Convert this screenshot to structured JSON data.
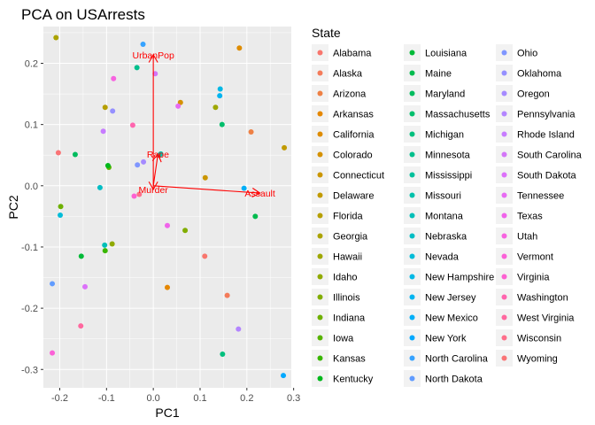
{
  "chart_data": {
    "type": "scatter",
    "title": "PCA on USArrests",
    "xlabel": "PC1",
    "ylabel": "PC2",
    "xlim": [
      -0.235,
      0.295
    ],
    "ylim": [
      -0.33,
      0.26
    ],
    "x_ticks": [
      -0.2,
      -0.1,
      0.0,
      0.1,
      0.2,
      0.3
    ],
    "x_tick_labels": [
      "-0.2",
      "-0.1",
      "0.0",
      "0.1",
      "0.2",
      "0.3"
    ],
    "y_ticks": [
      -0.3,
      -0.2,
      -0.1,
      0.0,
      0.1,
      0.2
    ],
    "y_tick_labels": [
      "-0.3",
      "-0.2",
      "-0.1",
      "0.0",
      "0.1",
      "0.2"
    ],
    "grid": true,
    "legend": {
      "title": "State",
      "position": "right"
    },
    "series": [
      {
        "name": "Alabama",
        "color": "#F8766D",
        "x": 0.11,
        "y": -0.115
      },
      {
        "name": "Alaska",
        "color": "#F47B5A",
        "x": 0.158,
        "y": -0.179
      },
      {
        "name": "Arizona",
        "color": "#EE8044",
        "x": 0.209,
        "y": 0.088
      },
      {
        "name": "Arkansas",
        "color": "#E58700",
        "x": 0.03,
        "y": -0.166
      },
      {
        "name": "California",
        "color": "#DE8C00",
        "x": 0.184,
        "y": 0.225
      },
      {
        "name": "Colorado",
        "color": "#D59100",
        "x": 0.058,
        "y": 0.136
      },
      {
        "name": "Connecticut",
        "color": "#CB9600",
        "x": 0.111,
        "y": 0.013
      },
      {
        "name": "Delaware",
        "color": "#C19A00",
        "x": 0.28,
        "y": 0.062
      },
      {
        "name": "Florida",
        "color": "#B69F00",
        "x": -0.103,
        "y": 0.128
      },
      {
        "name": "Georgia",
        "color": "#ABA300",
        "x": -0.208,
        "y": 0.242
      },
      {
        "name": "Hawaii",
        "color": "#9EA700",
        "x": 0.133,
        "y": 0.128
      },
      {
        "name": "Idaho",
        "color": "#90AA00",
        "x": -0.088,
        "y": -0.095
      },
      {
        "name": "Illinois",
        "color": "#81AD00",
        "x": 0.068,
        "y": -0.073
      },
      {
        "name": "Indiana",
        "color": "#6EB000",
        "x": -0.198,
        "y": -0.034
      },
      {
        "name": "Iowa",
        "color": "#57B300",
        "x": -0.095,
        "y": 0.03
      },
      {
        "name": "Kansas",
        "color": "#39B600",
        "x": -0.103,
        "y": -0.106
      },
      {
        "name": "Kentucky",
        "color": "#00B81B",
        "x": -0.097,
        "y": 0.033
      },
      {
        "name": "Louisiana",
        "color": "#00BA38",
        "x": -0.154,
        "y": -0.115
      },
      {
        "name": "Maine",
        "color": "#00BB4E",
        "x": 0.218,
        "y": -0.05
      },
      {
        "name": "Maryland",
        "color": "#00BC5E",
        "x": -0.167,
        "y": 0.051
      },
      {
        "name": "Massachusetts",
        "color": "#00BE6C",
        "x": 0.147,
        "y": 0.1
      },
      {
        "name": "Michigan",
        "color": "#00BF7D",
        "x": 0.148,
        "y": -0.275
      },
      {
        "name": "Minnesota",
        "color": "#00BF8C",
        "x": -0.035,
        "y": 0.193
      },
      {
        "name": "Mississippi",
        "color": "#00C09B",
        "x": 0.013,
        "y": 0.05
      },
      {
        "name": "Missouri",
        "color": "#00C0AA",
        "x": 0.016,
        "y": 0.052
      },
      {
        "name": "Montana",
        "color": "#00BFB8",
        "x": -0.104,
        "y": -0.097
      },
      {
        "name": "Nebraska",
        "color": "#00BDC4",
        "x": -0.114,
        "y": -0.003
      },
      {
        "name": "Nevada",
        "color": "#00BCD8",
        "x": -0.199,
        "y": -0.048
      },
      {
        "name": "New Hampshire",
        "color": "#00B8E5",
        "x": 0.143,
        "y": 0.158
      },
      {
        "name": "New Jersey",
        "color": "#00B4F0",
        "x": 0.142,
        "y": 0.147
      },
      {
        "name": "New Mexico",
        "color": "#00AFF8",
        "x": 0.194,
        "y": -0.004
      },
      {
        "name": "New York",
        "color": "#00A8FF",
        "x": 0.278,
        "y": -0.31
      },
      {
        "name": "North Carolina",
        "color": "#35A2FF",
        "x": -0.022,
        "y": 0.231
      },
      {
        "name": "North Dakota",
        "color": "#619CFF",
        "x": -0.216,
        "y": -0.16
      },
      {
        "name": "Ohio",
        "color": "#7F96FF",
        "x": -0.034,
        "y": 0.034
      },
      {
        "name": "Oklahoma",
        "color": "#9590FF",
        "x": -0.087,
        "y": 0.122
      },
      {
        "name": "Oregon",
        "color": "#A58AFF",
        "x": -0.021,
        "y": 0.039
      },
      {
        "name": "Pennsylvania",
        "color": "#B385FF",
        "x": 0.182,
        "y": -0.234
      },
      {
        "name": "Rhode Island",
        "color": "#C77CFF",
        "x": -0.107,
        "y": 0.089
      },
      {
        "name": "South Carolina",
        "color": "#D376F8",
        "x": 0.004,
        "y": 0.183
      },
      {
        "name": "South Dakota",
        "color": "#DC71FA",
        "x": -0.146,
        "y": -0.165
      },
      {
        "name": "Tennessee",
        "color": "#E76BF3",
        "x": 0.053,
        "y": 0.13
      },
      {
        "name": "Texas",
        "color": "#F063EA",
        "x": 0.03,
        "y": -0.065
      },
      {
        "name": "Utah",
        "color": "#F763E0",
        "x": -0.085,
        "y": 0.175
      },
      {
        "name": "Vermont",
        "color": "#FB61D7",
        "x": -0.216,
        "y": -0.273
      },
      {
        "name": "Virginia",
        "color": "#FD61D1",
        "x": -0.041,
        "y": -0.017
      },
      {
        "name": "Washington",
        "color": "#FF65AE",
        "x": -0.044,
        "y": 0.099
      },
      {
        "name": "West Virginia",
        "color": "#FF689F",
        "x": -0.155,
        "y": -0.229
      },
      {
        "name": "Wisconsin",
        "color": "#FE6E8A",
        "x": -0.03,
        "y": -0.014
      },
      {
        "name": "Wyoming",
        "color": "#FA7476",
        "x": -0.203,
        "y": 0.054
      }
    ],
    "arrows": [
      {
        "name": "UrbanPop",
        "color": "#FF0000",
        "x": 0.0,
        "y": 0.214
      },
      {
        "name": "Rape",
        "color": "#FF0000",
        "x": 0.01,
        "y": 0.052
      },
      {
        "name": "Murder",
        "color": "#FF0000",
        "x": 0.0,
        "y": -0.006
      },
      {
        "name": "Assault",
        "color": "#FF0000",
        "x": 0.228,
        "y": -0.012
      }
    ]
  }
}
